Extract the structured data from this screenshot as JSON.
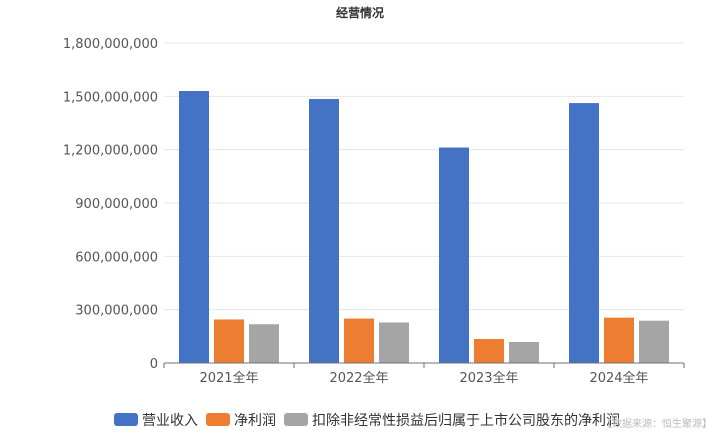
{
  "chart_data": {
    "type": "bar",
    "title": "经营情况",
    "categories": [
      "2021全年",
      "2022全年",
      "2023全年",
      "2024全年"
    ],
    "series": [
      {
        "name": "营业收入",
        "color": "#4472c4",
        "values": [
          1530000000,
          1485000000,
          1212000000,
          1462000000
        ]
      },
      {
        "name": "净利润",
        "color": "#ed7d31",
        "values": [
          245000000,
          250000000,
          135000000,
          255000000
        ]
      },
      {
        "name": "扣除非经常性损益后归属于上市公司股东的净利润",
        "color": "#a5a5a5",
        "values": [
          218000000,
          228000000,
          118000000,
          238000000
        ]
      }
    ],
    "ylim": [
      0,
      1800000000
    ],
    "yticks": [
      "0",
      "300,000,000",
      "600,000,000",
      "900,000,000",
      "1,200,000,000",
      "1,500,000,000",
      "1,800,000,000"
    ],
    "grid": true,
    "legend_position": "bottom"
  },
  "source_note": "【数据来源：恒生聚源】"
}
